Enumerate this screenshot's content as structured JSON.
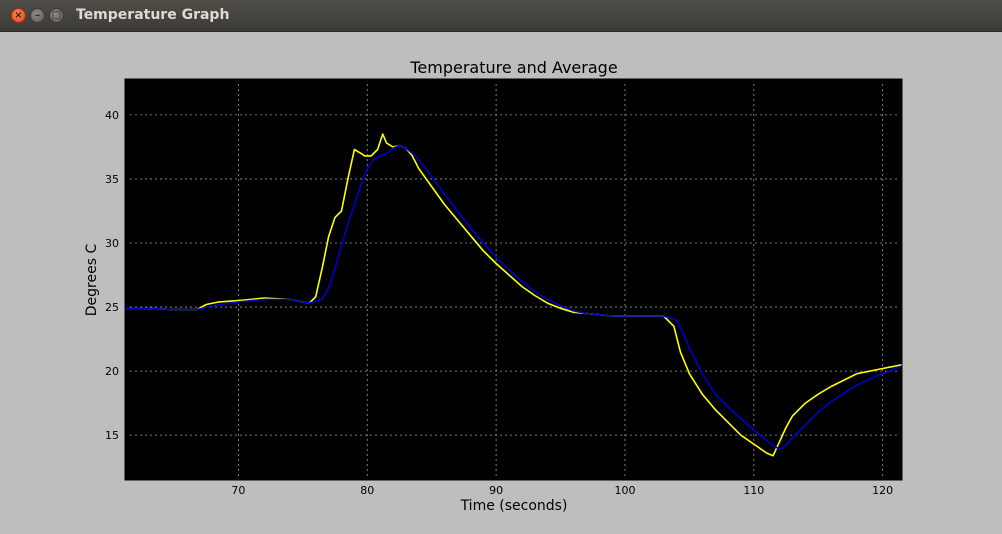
{
  "window": {
    "title": "Temperature Graph",
    "close_glyph": "×",
    "minimize_glyph": "–",
    "maximize_glyph": "□"
  },
  "colors": {
    "plot_background": "#000000",
    "figure_background": "#bebebe",
    "temperature": "#ffff00",
    "average": "#0000cc",
    "grid": "#9a9a9a"
  },
  "chart_data": {
    "type": "line",
    "title": "Temperature and Average",
    "xlabel": "Time (seconds)",
    "ylabel": "Degrees C",
    "xlim": [
      61.2,
      121.5
    ],
    "ylim": [
      11.5,
      42.8
    ],
    "xticks": [
      70,
      80,
      90,
      100,
      110,
      120
    ],
    "yticks": [
      15,
      20,
      25,
      30,
      35,
      40
    ],
    "grid": true,
    "series": [
      {
        "color": "#ffff00",
        "x": [
          61.2,
          63,
          65,
          66.8,
          67.5,
          68.5,
          70,
          72,
          74,
          75.5,
          76,
          76.5,
          77,
          77.5,
          78,
          78.5,
          79,
          79.5,
          79.8,
          80.3,
          80.8,
          81.2,
          81.5,
          82,
          82.5,
          83,
          83.5,
          84,
          85,
          86,
          87,
          88,
          89,
          90,
          91,
          92,
          93,
          94,
          95,
          96,
          97,
          98,
          99,
          100,
          101,
          102,
          103,
          103.8,
          104.3,
          105,
          106,
          107,
          108,
          109,
          110,
          111,
          111.5,
          112,
          112.5,
          113,
          114,
          115,
          116,
          117,
          118,
          119,
          120,
          121,
          121.5
        ],
        "y": [
          24.9,
          24.9,
          24.8,
          24.8,
          25.2,
          25.4,
          25.5,
          25.7,
          25.6,
          25.3,
          25.8,
          28.0,
          30.5,
          32.0,
          32.5,
          35.0,
          37.3,
          37.0,
          36.8,
          36.8,
          37.3,
          38.5,
          37.8,
          37.5,
          37.6,
          37.4,
          36.8,
          35.8,
          34.4,
          33.0,
          31.8,
          30.6,
          29.4,
          28.4,
          27.5,
          26.6,
          25.9,
          25.3,
          24.9,
          24.6,
          24.5,
          24.4,
          24.3,
          24.3,
          24.3,
          24.3,
          24.3,
          23.5,
          21.5,
          19.8,
          18.2,
          17.0,
          16.0,
          15.0,
          14.3,
          13.6,
          13.4,
          14.5,
          15.6,
          16.5,
          17.5,
          18.2,
          18.8,
          19.3,
          19.8,
          20.0,
          20.2,
          20.4,
          20.5
        ]
      },
      {
        "color": "#0000cc",
        "x": [
          61.2,
          63,
          65,
          66.8,
          68,
          70,
          72,
          74,
          75.5,
          76.5,
          77,
          77.5,
          78,
          78.5,
          79,
          79.5,
          80,
          80.5,
          81,
          81.5,
          82,
          82.5,
          83,
          83.5,
          84,
          85,
          86,
          87,
          88,
          89,
          90,
          91,
          92,
          93,
          94,
          95,
          96,
          97,
          98,
          99,
          100,
          101,
          102,
          103,
          104,
          104.5,
          105,
          106,
          107,
          108,
          109,
          110,
          111,
          111.5,
          112,
          112.5,
          113,
          114,
          115,
          116,
          117,
          118,
          119,
          120,
          121,
          121.5
        ],
        "y": [
          24.9,
          24.9,
          24.8,
          24.8,
          25.1,
          25.4,
          25.6,
          25.6,
          25.3,
          25.6,
          26.5,
          28.0,
          29.8,
          31.5,
          33.0,
          34.5,
          35.8,
          36.5,
          36.8,
          37.0,
          37.4,
          37.6,
          37.4,
          37.0,
          36.5,
          35.2,
          33.8,
          32.5,
          31.2,
          30.0,
          28.9,
          27.9,
          27.0,
          26.2,
          25.6,
          25.1,
          24.7,
          24.5,
          24.4,
          24.3,
          24.3,
          24.3,
          24.3,
          24.3,
          24.0,
          23.0,
          21.8,
          19.8,
          18.2,
          17.2,
          16.3,
          15.4,
          14.6,
          14.2,
          13.9,
          14.2,
          14.8,
          15.8,
          16.8,
          17.6,
          18.3,
          18.9,
          19.4,
          19.8,
          20.2,
          20.4
        ]
      }
    ]
  }
}
